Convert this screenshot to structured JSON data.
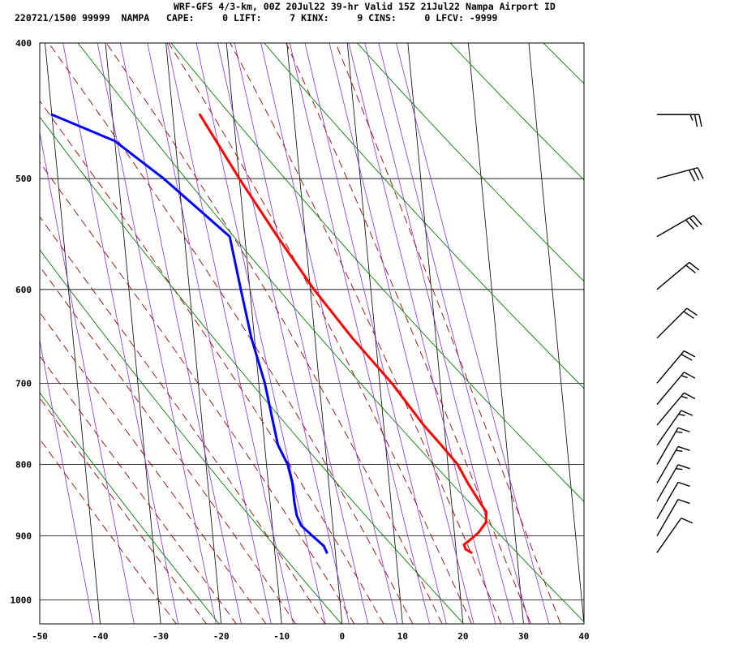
{
  "header": {
    "line1": "WRF-GFS 4/3-km, 00Z 20Jul22 39-hr Valid 15Z 21Jul22 Nampa Airport ID",
    "line2": "220721/1500 99999  NAMPA   CAPE:     0 LIFT:     7 KINX:     9 CINS:     0 LFCV: -9999"
  },
  "colors": {
    "temperature": "#ff0000",
    "dewpoint": "#0000ff",
    "isotherm_grid": "#000000",
    "dry_adiabat": "#008000",
    "moist_adiabat": "#a00000",
    "mixing_ratio": "#8a2be2",
    "wind_barb": "#000000"
  },
  "chart_data": {
    "type": "line",
    "subtype": "skew-T log-P sounding",
    "xlim": [
      -50,
      40
    ],
    "pressure_range": [
      1040,
      400
    ],
    "y_scale": "log",
    "x_ticks": [
      "-50",
      "-40",
      "-30",
      "-20",
      "-10",
      "0",
      "10",
      "20",
      "30",
      "40"
    ],
    "y_ticks": [
      "400",
      "500",
      "600",
      "700",
      "800",
      "900",
      "1000"
    ],
    "isobars": [
      400,
      500,
      600,
      700,
      800,
      900,
      1000
    ],
    "isotherms": [
      -110,
      -100,
      -90,
      -80,
      -70,
      -60,
      -50,
      -40,
      -30,
      -20,
      -10,
      0,
      10,
      20,
      30,
      40
    ],
    "dry_adiabats_K": [
      250,
      270,
      290,
      310,
      330,
      350,
      370,
      390,
      410,
      430,
      450,
      470
    ],
    "moist_adiabats_C": [
      -30,
      -25,
      -20,
      -15,
      -10,
      -5,
      0,
      5,
      10,
      15,
      20,
      25,
      30,
      35
    ],
    "mixing_ratio_lines_gkg": [
      0.1,
      0.2,
      0.4,
      0.7,
      1,
      1.5,
      2,
      3,
      4,
      5,
      7,
      10,
      12,
      16,
      20,
      24,
      28,
      34
    ],
    "grid": true,
    "series": [
      {
        "name": "",
        "variable": "temperature",
        "points": [
          {
            "p": 925,
            "t": 22.5
          },
          {
            "p": 920,
            "t": 21.6
          },
          {
            "p": 913,
            "t": 21.4
          },
          {
            "p": 905,
            "t": 22.6
          },
          {
            "p": 895,
            "t": 24.0
          },
          {
            "p": 880,
            "t": 25.4
          },
          {
            "p": 865,
            "t": 25.6
          },
          {
            "p": 850,
            "t": 24.6
          },
          {
            "p": 825,
            "t": 23.0
          },
          {
            "p": 800,
            "t": 21.6
          },
          {
            "p": 775,
            "t": 19.2
          },
          {
            "p": 750,
            "t": 16.6
          },
          {
            "p": 700,
            "t": 12.0
          },
          {
            "p": 650,
            "t": 6.2
          },
          {
            "p": 600,
            "t": 0.6
          },
          {
            "p": 550,
            "t": -4.6
          },
          {
            "p": 500,
            "t": -10.0
          },
          {
            "p": 450,
            "t": -15.5
          }
        ]
      },
      {
        "name": "",
        "variable": "dewpoint",
        "points": [
          {
            "p": 925,
            "t": -1.4
          },
          {
            "p": 915,
            "t": -1.8
          },
          {
            "p": 900,
            "t": -3.5
          },
          {
            "p": 885,
            "t": -5.2
          },
          {
            "p": 870,
            "t": -5.8
          },
          {
            "p": 850,
            "t": -6.0
          },
          {
            "p": 825,
            "t": -6.0
          },
          {
            "p": 800,
            "t": -6.5
          },
          {
            "p": 775,
            "t": -7.8
          },
          {
            "p": 750,
            "t": -8.2
          },
          {
            "p": 700,
            "t": -9.0
          },
          {
            "p": 650,
            "t": -10.5
          },
          {
            "p": 600,
            "t": -11.5
          },
          {
            "p": 550,
            "t": -12.5
          },
          {
            "p": 500,
            "t": -22.5
          },
          {
            "p": 470,
            "t": -30.0
          },
          {
            "p": 450,
            "t": -40.0
          }
        ]
      }
    ],
    "winds": [
      {
        "p": 450,
        "dir": 90,
        "kt": 25
      },
      {
        "p": 500,
        "dir": 75,
        "kt": 30
      },
      {
        "p": 550,
        "dir": 60,
        "kt": 30
      },
      {
        "p": 600,
        "dir": 50,
        "kt": 20
      },
      {
        "p": 650,
        "dir": 45,
        "kt": 20
      },
      {
        "p": 700,
        "dir": 40,
        "kt": 20
      },
      {
        "p": 725,
        "dir": 40,
        "kt": 15
      },
      {
        "p": 750,
        "dir": 40,
        "kt": 15
      },
      {
        "p": 775,
        "dir": 35,
        "kt": 15
      },
      {
        "p": 800,
        "dir": 30,
        "kt": 15
      },
      {
        "p": 825,
        "dir": 30,
        "kt": 15
      },
      {
        "p": 850,
        "dir": 30,
        "kt": 15
      },
      {
        "p": 875,
        "dir": 30,
        "kt": 10
      },
      {
        "p": 900,
        "dir": 30,
        "kt": 10
      },
      {
        "p": 925,
        "dir": 35,
        "kt": 10
      }
    ]
  }
}
